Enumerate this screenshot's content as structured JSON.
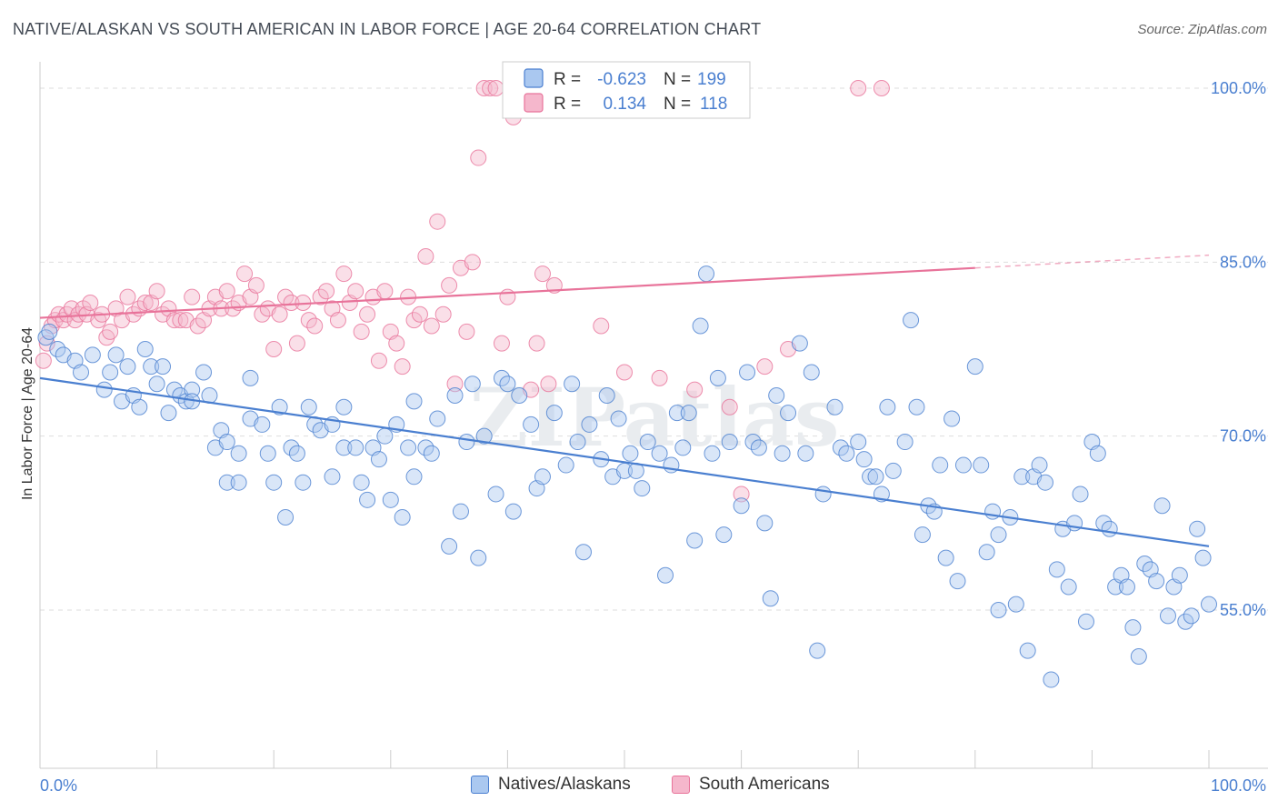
{
  "title": "NATIVE/ALASKAN VS SOUTH AMERICAN IN LABOR FORCE | AGE 20-64 CORRELATION CHART",
  "source": "Source: ZipAtlas.com",
  "watermark": "ZIPatlas",
  "colors": {
    "blue": "#4a7fd0",
    "blue_fill": "#aac8f0",
    "pink": "#e8739a",
    "pink_fill": "#f5b7cc",
    "grid": "#dddddd"
  },
  "legend": {
    "rows": [
      {
        "r_label": "R =",
        "r_value": "-0.623",
        "n_label": "N =",
        "n_value": "199"
      },
      {
        "r_label": "R =",
        "r_value": "0.134",
        "n_label": "N =",
        "n_value": "118"
      }
    ]
  },
  "bottom_legend": [
    "Natives/Alaskans",
    "South Americans"
  ],
  "chart_data": {
    "type": "scatter",
    "title": "NATIVE/ALASKAN VS SOUTH AMERICAN IN LABOR FORCE | AGE 20-64 CORRELATION CHART",
    "xlabel": "",
    "ylabel": "In Labor Force | Age 20-64",
    "xlim": [
      0,
      100
    ],
    "ylim": [
      40,
      102
    ],
    "x_tick_labels": [
      "0.0%",
      "100.0%"
    ],
    "y_ticks": [
      55,
      70,
      85,
      100
    ],
    "y_tick_labels": [
      "55.0%",
      "70.0%",
      "85.0%",
      "100.0%"
    ],
    "grid": true,
    "legend_position": "top-center",
    "series": [
      {
        "name": "Natives/Alaskans",
        "color": "#4a7fd0",
        "trend": {
          "x": [
            0,
            100
          ],
          "y": [
            75.0,
            60.5
          ]
        },
        "points": [
          [
            0.5,
            78.5
          ],
          [
            0.8,
            79
          ],
          [
            1.5,
            77.5
          ],
          [
            2,
            77
          ],
          [
            3,
            76.5
          ],
          [
            3.5,
            75.5
          ],
          [
            4.5,
            77
          ],
          [
            5.5,
            74
          ],
          [
            6,
            75.5
          ],
          [
            6.5,
            77
          ],
          [
            7,
            73
          ],
          [
            7.5,
            76
          ],
          [
            8,
            73.5
          ],
          [
            8.5,
            72.5
          ],
          [
            9,
            77.5
          ],
          [
            9.5,
            76
          ],
          [
            10,
            74.5
          ],
          [
            10.5,
            76
          ],
          [
            11,
            72
          ],
          [
            11.5,
            74
          ],
          [
            12,
            73.5
          ],
          [
            12.5,
            73
          ],
          [
            13,
            74
          ],
          [
            13,
            73
          ],
          [
            14,
            75.5
          ],
          [
            14.5,
            73.5
          ],
          [
            15,
            69
          ],
          [
            15.5,
            70.5
          ],
          [
            16,
            69.5
          ],
          [
            16,
            66
          ],
          [
            17,
            68.5
          ],
          [
            17,
            66
          ],
          [
            18,
            75
          ],
          [
            18,
            71.5
          ],
          [
            19,
            71
          ],
          [
            19.5,
            68.5
          ],
          [
            20,
            66
          ],
          [
            20.5,
            72.5
          ],
          [
            21,
            63
          ],
          [
            21.5,
            69
          ],
          [
            22,
            68.5
          ],
          [
            22.5,
            66
          ],
          [
            23,
            72.5
          ],
          [
            23.5,
            71
          ],
          [
            24,
            70.5
          ],
          [
            25,
            71
          ],
          [
            25,
            66.5
          ],
          [
            26,
            69
          ],
          [
            26,
            72.5
          ],
          [
            27,
            69
          ],
          [
            27.5,
            66
          ],
          [
            28,
            64.5
          ],
          [
            28.5,
            69
          ],
          [
            29,
            68
          ],
          [
            29.5,
            70
          ],
          [
            30,
            64.5
          ],
          [
            30.5,
            71
          ],
          [
            31,
            63
          ],
          [
            31.5,
            69
          ],
          [
            32,
            73
          ],
          [
            32,
            66.5
          ],
          [
            33,
            69
          ],
          [
            33.5,
            68.5
          ],
          [
            34,
            71.5
          ],
          [
            35,
            60.5
          ],
          [
            35.5,
            73.5
          ],
          [
            36,
            63.5
          ],
          [
            36.5,
            69.5
          ],
          [
            37,
            74.5
          ],
          [
            37.5,
            59.5
          ],
          [
            38,
            70
          ],
          [
            39,
            65
          ],
          [
            39.5,
            75
          ],
          [
            40,
            74.5
          ],
          [
            40.5,
            63.5
          ],
          [
            41,
            73.5
          ],
          [
            42,
            71
          ],
          [
            42.5,
            65.5
          ],
          [
            43,
            66.5
          ],
          [
            44,
            72
          ],
          [
            45,
            67.5
          ],
          [
            45.5,
            74.5
          ],
          [
            46,
            69.5
          ],
          [
            46.5,
            60
          ],
          [
            47,
            71
          ],
          [
            48,
            68
          ],
          [
            48.5,
            73.5
          ],
          [
            49,
            66.5
          ],
          [
            49.5,
            71.5
          ],
          [
            50,
            67
          ],
          [
            50.5,
            68.5
          ],
          [
            51,
            67
          ],
          [
            51.5,
            65.5
          ],
          [
            52,
            69.5
          ],
          [
            53,
            68.5
          ],
          [
            53.5,
            58
          ],
          [
            54,
            67.5
          ],
          [
            54.5,
            72
          ],
          [
            55,
            69
          ],
          [
            55.5,
            72
          ],
          [
            56,
            61
          ],
          [
            56.5,
            79.5
          ],
          [
            57,
            84
          ],
          [
            57.5,
            68.5
          ],
          [
            58,
            75
          ],
          [
            58.5,
            61.5
          ],
          [
            59,
            69.5
          ],
          [
            60,
            64
          ],
          [
            60.5,
            75.5
          ],
          [
            61,
            69.5
          ],
          [
            61.5,
            69
          ],
          [
            62,
            62.5
          ],
          [
            62.5,
            56
          ],
          [
            63,
            73.5
          ],
          [
            63.5,
            68.5
          ],
          [
            64,
            72
          ],
          [
            65,
            78
          ],
          [
            65.5,
            68.5
          ],
          [
            66,
            75.5
          ],
          [
            66.5,
            51.5
          ],
          [
            67,
            65
          ],
          [
            68,
            72.5
          ],
          [
            68.5,
            69
          ],
          [
            69,
            68.5
          ],
          [
            70,
            69.5
          ],
          [
            70.5,
            68
          ],
          [
            71,
            66.5
          ],
          [
            71.5,
            66.5
          ],
          [
            72,
            65
          ],
          [
            72.5,
            72.5
          ],
          [
            73,
            67
          ],
          [
            74,
            69.5
          ],
          [
            74.5,
            80
          ],
          [
            75,
            72.5
          ],
          [
            75.5,
            61.5
          ],
          [
            76,
            64
          ],
          [
            76.5,
            63.5
          ],
          [
            77,
            67.5
          ],
          [
            77.5,
            59.5
          ],
          [
            78,
            71.5
          ],
          [
            78.5,
            57.5
          ],
          [
            79,
            67.5
          ],
          [
            80,
            76
          ],
          [
            80.5,
            67.5
          ],
          [
            81,
            60
          ],
          [
            81.5,
            63.5
          ],
          [
            82,
            61.5
          ],
          [
            82,
            55
          ],
          [
            83,
            63
          ],
          [
            83.5,
            55.5
          ],
          [
            84,
            66.5
          ],
          [
            84.5,
            51.5
          ],
          [
            85,
            66.5
          ],
          [
            85.5,
            67.5
          ],
          [
            86,
            66
          ],
          [
            86.5,
            49
          ],
          [
            87,
            58.5
          ],
          [
            87.5,
            62
          ],
          [
            88,
            57
          ],
          [
            88.5,
            62.5
          ],
          [
            89,
            65
          ],
          [
            89.5,
            54
          ],
          [
            90,
            69.5
          ],
          [
            90.5,
            68.5
          ],
          [
            91,
            62.5
          ],
          [
            91.5,
            62
          ],
          [
            92,
            57
          ],
          [
            92.5,
            58
          ],
          [
            93,
            57
          ],
          [
            93.5,
            53.5
          ],
          [
            94,
            51
          ],
          [
            94.5,
            59
          ],
          [
            95,
            58.5
          ],
          [
            95.5,
            57.5
          ],
          [
            96,
            64
          ],
          [
            96.5,
            54.5
          ],
          [
            97,
            57
          ],
          [
            97.5,
            58
          ],
          [
            98,
            54
          ],
          [
            98.5,
            54.5
          ],
          [
            99,
            62
          ],
          [
            99.5,
            59.5
          ],
          [
            100,
            55.5
          ]
        ]
      },
      {
        "name": "South Americans",
        "color": "#e8739a",
        "trend": {
          "x": [
            0,
            80
          ],
          "y": [
            80.2,
            84.5
          ]
        },
        "trend_dashed": {
          "x": [
            80,
            100
          ],
          "y": [
            84.5,
            85.6
          ]
        },
        "points": [
          [
            0.3,
            76.5
          ],
          [
            0.6,
            78
          ],
          [
            1,
            79.5
          ],
          [
            1.3,
            80
          ],
          [
            1.6,
            80.5
          ],
          [
            2,
            80
          ],
          [
            2.3,
            80.5
          ],
          [
            2.7,
            81
          ],
          [
            3,
            80
          ],
          [
            3.3,
            80.5
          ],
          [
            3.7,
            81
          ],
          [
            4,
            80.5
          ],
          [
            4.3,
            81.5
          ],
          [
            5,
            80
          ],
          [
            5.3,
            80.5
          ],
          [
            5.7,
            78.5
          ],
          [
            6,
            79
          ],
          [
            6.5,
            81
          ],
          [
            7,
            80
          ],
          [
            7.5,
            82
          ],
          [
            8,
            80.5
          ],
          [
            8.5,
            81
          ],
          [
            9,
            81.5
          ],
          [
            9.5,
            81.5
          ],
          [
            10,
            82.5
          ],
          [
            10.5,
            80.5
          ],
          [
            11,
            81
          ],
          [
            11.5,
            80
          ],
          [
            12,
            80
          ],
          [
            12.5,
            80
          ],
          [
            13,
            82
          ],
          [
            13.5,
            79.5
          ],
          [
            14,
            80
          ],
          [
            14.5,
            81
          ],
          [
            15,
            82
          ],
          [
            15.5,
            81
          ],
          [
            16,
            82.5
          ],
          [
            16.5,
            81
          ],
          [
            17,
            81.5
          ],
          [
            17.5,
            84
          ],
          [
            18,
            82
          ],
          [
            18.5,
            83
          ],
          [
            19,
            80.5
          ],
          [
            19.5,
            81
          ],
          [
            20,
            77.5
          ],
          [
            20.5,
            80.5
          ],
          [
            21,
            82
          ],
          [
            21.5,
            81.5
          ],
          [
            22,
            78
          ],
          [
            22.5,
            81.5
          ],
          [
            23,
            80
          ],
          [
            23.5,
            79.5
          ],
          [
            24,
            82
          ],
          [
            24.5,
            82.5
          ],
          [
            25,
            81
          ],
          [
            25.5,
            80
          ],
          [
            26,
            84
          ],
          [
            26.5,
            81.5
          ],
          [
            27,
            82.5
          ],
          [
            27.5,
            79
          ],
          [
            28,
            80.5
          ],
          [
            28.5,
            82
          ],
          [
            29,
            76.5
          ],
          [
            29.5,
            82.5
          ],
          [
            30,
            79
          ],
          [
            30.5,
            78
          ],
          [
            31,
            76
          ],
          [
            31.5,
            82
          ],
          [
            32,
            80
          ],
          [
            32.5,
            80.5
          ],
          [
            33,
            85.5
          ],
          [
            33.5,
            79.5
          ],
          [
            34,
            88.5
          ],
          [
            34.5,
            80.5
          ],
          [
            35,
            83
          ],
          [
            35.5,
            74.5
          ],
          [
            36,
            84.5
          ],
          [
            36.5,
            79
          ],
          [
            37,
            85
          ],
          [
            37.5,
            94
          ],
          [
            38,
            100
          ],
          [
            38.5,
            100
          ],
          [
            39,
            100
          ],
          [
            39.5,
            78
          ],
          [
            40,
            82
          ],
          [
            40.5,
            97.5
          ],
          [
            41,
            100
          ],
          [
            42,
            74
          ],
          [
            42.5,
            78
          ],
          [
            43,
            84
          ],
          [
            43.5,
            74.5
          ],
          [
            44,
            83
          ],
          [
            48,
            79.5
          ],
          [
            50,
            75.5
          ],
          [
            53,
            75
          ],
          [
            56,
            74
          ],
          [
            59,
            72.5
          ],
          [
            60,
            65
          ],
          [
            62,
            76
          ],
          [
            64,
            77.5
          ],
          [
            70,
            100
          ],
          [
            72,
            100
          ]
        ]
      }
    ]
  }
}
